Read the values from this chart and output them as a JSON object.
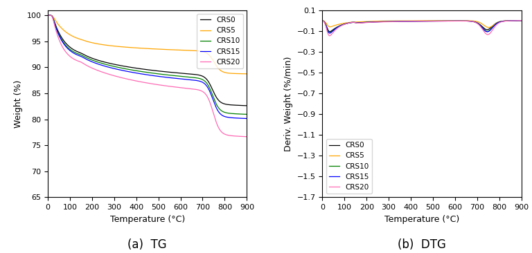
{
  "labels": [
    "CRS0",
    "CRS5",
    "CRS10",
    "CRS15",
    "CRS20"
  ],
  "colors": [
    "#000000",
    "#FFA500",
    "#008000",
    "#0000FF",
    "#FF69B4"
  ],
  "tg_xlabel": "Temperature (°C)",
  "tg_ylabel": "Weight (%)",
  "tg_title": "(a)  TG",
  "dtg_xlabel": "Temperature (°C)",
  "dtg_ylabel": "Deriv. Weight (%/min)",
  "dtg_title": "(b)  DTG",
  "tg_xlim": [
    0,
    900
  ],
  "tg_ylim": [
    65,
    101
  ],
  "dtg_xlim": [
    0,
    900
  ],
  "dtg_ylim": [
    -1.7,
    0.1
  ]
}
